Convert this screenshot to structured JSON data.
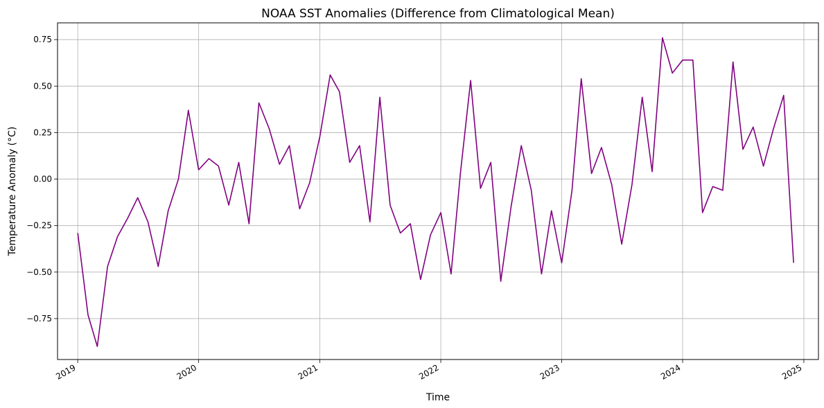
{
  "chart_data": {
    "type": "line",
    "title": "NOAA SST Anomalies (Difference from Climatological Mean)",
    "xlabel": "Time",
    "ylabel": "Temperature Anomaly (°C)",
    "x_axis_kind": "date",
    "xlim": [
      "2018-11-01",
      "2025-02-14"
    ],
    "ylim": [
      -0.97,
      0.84
    ],
    "grid": true,
    "x_ticks": [
      {
        "date": "2019-01-01",
        "label": "2019"
      },
      {
        "date": "2020-01-01",
        "label": "2020"
      },
      {
        "date": "2021-01-01",
        "label": "2021"
      },
      {
        "date": "2022-01-01",
        "label": "2022"
      },
      {
        "date": "2023-01-01",
        "label": "2023"
      },
      {
        "date": "2024-01-01",
        "label": "2024"
      },
      {
        "date": "2025-01-01",
        "label": "2025"
      }
    ],
    "y_ticks": [
      {
        "value": -0.75,
        "label": "−0.75"
      },
      {
        "value": -0.5,
        "label": "−0.50"
      },
      {
        "value": -0.25,
        "label": "−0.25"
      },
      {
        "value": 0.0,
        "label": "0.00"
      },
      {
        "value": 0.25,
        "label": "0.25"
      },
      {
        "value": 0.5,
        "label": "0.50"
      },
      {
        "value": 0.75,
        "label": "0.75"
      }
    ],
    "series": [
      {
        "color": "#800080",
        "x": [
          "2019-01-01",
          "2019-02-01",
          "2019-03-01",
          "2019-04-01",
          "2019-05-01",
          "2019-06-01",
          "2019-07-01",
          "2019-08-01",
          "2019-09-01",
          "2019-10-01",
          "2019-11-01",
          "2019-12-01",
          "2020-01-01",
          "2020-02-01",
          "2020-03-01",
          "2020-04-01",
          "2020-05-01",
          "2020-06-01",
          "2020-07-01",
          "2020-08-01",
          "2020-09-01",
          "2020-10-01",
          "2020-11-01",
          "2020-12-01",
          "2021-01-01",
          "2021-02-01",
          "2021-03-01",
          "2021-04-01",
          "2021-05-01",
          "2021-06-01",
          "2021-07-01",
          "2021-08-01",
          "2021-09-01",
          "2021-10-01",
          "2021-11-01",
          "2021-12-01",
          "2022-01-01",
          "2022-02-01",
          "2022-03-01",
          "2022-04-01",
          "2022-05-01",
          "2022-06-01",
          "2022-07-01",
          "2022-08-01",
          "2022-09-01",
          "2022-10-01",
          "2022-11-01",
          "2022-12-01",
          "2023-01-01",
          "2023-02-01",
          "2023-03-01",
          "2023-04-01",
          "2023-05-01",
          "2023-06-01",
          "2023-07-01",
          "2023-08-01",
          "2023-09-01",
          "2023-10-01",
          "2023-11-01",
          "2023-12-01",
          "2024-01-01",
          "2024-02-01",
          "2024-03-01",
          "2024-04-01",
          "2024-05-01",
          "2024-06-01",
          "2024-07-01",
          "2024-08-01",
          "2024-09-01",
          "2024-10-01",
          "2024-11-01",
          "2024-12-01"
        ],
        "values": [
          -0.29,
          -0.73,
          -0.9,
          -0.47,
          -0.31,
          -0.21,
          -0.1,
          -0.23,
          -0.47,
          -0.17,
          0.0,
          0.37,
          0.05,
          0.11,
          0.07,
          -0.14,
          0.09,
          -0.24,
          0.41,
          0.27,
          0.08,
          0.18,
          -0.16,
          -0.02,
          0.23,
          0.56,
          0.47,
          0.09,
          0.18,
          -0.23,
          0.44,
          -0.14,
          -0.29,
          -0.24,
          -0.54,
          -0.3,
          -0.18,
          -0.51,
          0.03,
          0.53,
          -0.05,
          0.09,
          -0.55,
          -0.15,
          0.18,
          -0.06,
          -0.51,
          -0.17,
          -0.45,
          -0.06,
          0.54,
          0.03,
          0.17,
          -0.03,
          -0.35,
          -0.03,
          0.44,
          0.04,
          0.76,
          0.57,
          0.64,
          0.64,
          -0.18,
          -0.04,
          -0.06,
          0.63,
          0.16,
          0.28,
          0.07,
          0.27,
          0.45,
          -0.45
        ]
      }
    ]
  }
}
